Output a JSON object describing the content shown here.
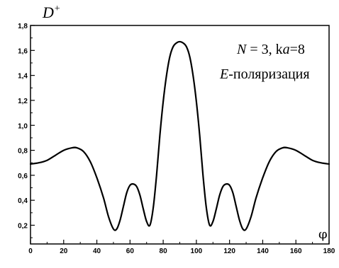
{
  "chart_data": {
    "type": "line",
    "title": "",
    "ylabel": "D",
    "ylabel_sup": "+",
    "xlabel": "φ",
    "xlim": [
      0,
      180
    ],
    "ylim": [
      0.05,
      1.8
    ],
    "x_ticks": [
      0,
      20,
      40,
      60,
      80,
      100,
      120,
      140,
      160,
      180
    ],
    "y_ticks": [
      0.2,
      0.4,
      0.6,
      0.8,
      1.0,
      1.2,
      1.4,
      1.6,
      1.8
    ],
    "x_tick_labels": [
      "0",
      "20",
      "40",
      "60",
      "80",
      "100",
      "120",
      "140",
      "160",
      "180"
    ],
    "y_tick_labels": [
      "0,2",
      "0,4",
      "0,6",
      "0,8",
      "1,0",
      "1,2",
      "1,4",
      "1,6",
      "1,8"
    ],
    "grid": false,
    "annotations": {
      "line1_N": "N",
      "line1_eq": " = 3,  k",
      "line1_a": "a",
      "line1_eq2": "=8",
      "line2_E": "E",
      "line2_rest": "-поляризация"
    },
    "series": [
      {
        "points": [
          [
            0,
            0.69
          ],
          [
            5,
            0.7
          ],
          [
            10,
            0.72
          ],
          [
            15,
            0.76
          ],
          [
            20,
            0.8
          ],
          [
            25,
            0.82
          ],
          [
            28,
            0.82
          ],
          [
            32,
            0.79
          ],
          [
            36,
            0.71
          ],
          [
            40,
            0.58
          ],
          [
            44,
            0.42
          ],
          [
            47,
            0.27
          ],
          [
            50,
            0.17
          ],
          [
            52,
            0.17
          ],
          [
            54,
            0.24
          ],
          [
            56,
            0.35
          ],
          [
            58,
            0.46
          ],
          [
            60,
            0.52
          ],
          [
            62,
            0.53
          ],
          [
            64,
            0.51
          ],
          [
            66,
            0.44
          ],
          [
            68,
            0.33
          ],
          [
            70,
            0.23
          ],
          [
            72,
            0.2
          ],
          [
            74,
            0.34
          ],
          [
            76,
            0.6
          ],
          [
            78,
            0.92
          ],
          [
            80,
            1.19
          ],
          [
            82,
            1.4
          ],
          [
            84,
            1.55
          ],
          [
            86,
            1.63
          ],
          [
            88,
            1.66
          ],
          [
            90,
            1.67
          ],
          [
            92,
            1.66
          ],
          [
            94,
            1.63
          ],
          [
            96,
            1.55
          ],
          [
            98,
            1.4
          ],
          [
            100,
            1.19
          ],
          [
            102,
            0.92
          ],
          [
            104,
            0.6
          ],
          [
            106,
            0.34
          ],
          [
            108,
            0.2
          ],
          [
            110,
            0.23
          ],
          [
            112,
            0.33
          ],
          [
            114,
            0.44
          ],
          [
            116,
            0.51
          ],
          [
            118,
            0.53
          ],
          [
            120,
            0.52
          ],
          [
            122,
            0.46
          ],
          [
            124,
            0.35
          ],
          [
            126,
            0.24
          ],
          [
            128,
            0.17
          ],
          [
            130,
            0.17
          ],
          [
            133,
            0.27
          ],
          [
            136,
            0.42
          ],
          [
            140,
            0.58
          ],
          [
            144,
            0.71
          ],
          [
            148,
            0.79
          ],
          [
            152,
            0.82
          ],
          [
            155,
            0.82
          ],
          [
            160,
            0.8
          ],
          [
            165,
            0.76
          ],
          [
            170,
            0.72
          ],
          [
            175,
            0.7
          ],
          [
            180,
            0.69
          ]
        ]
      }
    ]
  }
}
